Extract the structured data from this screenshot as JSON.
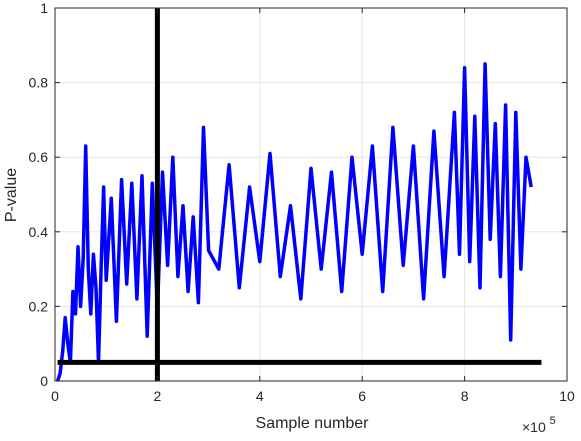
{
  "chart_data": {
    "type": "line",
    "xlabel": "Sample number",
    "ylabel": "P-value",
    "x_multiplier_base": "×10",
    "x_multiplier_exp": "5",
    "xlim": [
      0,
      10
    ],
    "ylim": [
      0,
      1
    ],
    "x_ticks": [
      "0",
      "2",
      "4",
      "6",
      "8",
      "10"
    ],
    "y_ticks": [
      "0",
      "0.2",
      "0.4",
      "0.6",
      "0.8",
      "1"
    ],
    "grid": true,
    "colors": {
      "series": "#0000ff",
      "threshold": "#000000",
      "grid": "#e5e5e5",
      "axes": "#262626"
    },
    "series": [
      {
        "x": [
          0.05,
          0.1,
          0.15,
          0.2,
          0.25,
          0.3,
          0.35,
          0.4,
          0.45,
          0.5,
          0.55,
          0.6,
          0.65,
          0.7,
          0.75,
          0.8,
          0.85,
          0.9,
          0.95,
          1.0,
          1.1,
          1.2,
          1.3,
          1.4,
          1.5,
          1.6,
          1.7,
          1.8,
          1.9,
          2.0,
          2.1,
          2.2,
          2.3,
          2.4,
          2.5,
          2.6,
          2.7,
          2.8,
          2.9,
          3.0,
          3.2,
          3.4,
          3.6,
          3.8,
          4.0,
          4.2,
          4.4,
          4.6,
          4.8,
          5.0,
          5.2,
          5.4,
          5.6,
          5.8,
          6.0,
          6.2,
          6.4,
          6.6,
          6.8,
          7.0,
          7.2,
          7.4,
          7.6,
          7.8,
          7.9,
          8.0,
          8.1,
          8.2,
          8.3,
          8.4,
          8.5,
          8.6,
          8.7,
          8.8,
          8.9,
          9.0,
          9.1,
          9.2,
          9.3
        ],
        "y": [
          0.0,
          0.02,
          0.08,
          0.17,
          0.1,
          0.05,
          0.24,
          0.18,
          0.36,
          0.2,
          0.33,
          0.63,
          0.3,
          0.18,
          0.34,
          0.25,
          0.05,
          0.3,
          0.52,
          0.27,
          0.49,
          0.16,
          0.54,
          0.26,
          0.53,
          0.22,
          0.55,
          0.12,
          0.53,
          0.19,
          0.56,
          0.31,
          0.6,
          0.28,
          0.47,
          0.24,
          0.44,
          0.21,
          0.68,
          0.35,
          0.3,
          0.58,
          0.25,
          0.52,
          0.32,
          0.61,
          0.28,
          0.47,
          0.22,
          0.57,
          0.3,
          0.56,
          0.24,
          0.6,
          0.34,
          0.63,
          0.24,
          0.68,
          0.31,
          0.63,
          0.22,
          0.67,
          0.28,
          0.72,
          0.34,
          0.84,
          0.32,
          0.71,
          0.25,
          0.85,
          0.38,
          0.69,
          0.28,
          0.74,
          0.11,
          0.72,
          0.3,
          0.6,
          0.52
        ]
      }
    ],
    "vertical_line_x": 2,
    "horizontal_line_y": 0.05
  }
}
